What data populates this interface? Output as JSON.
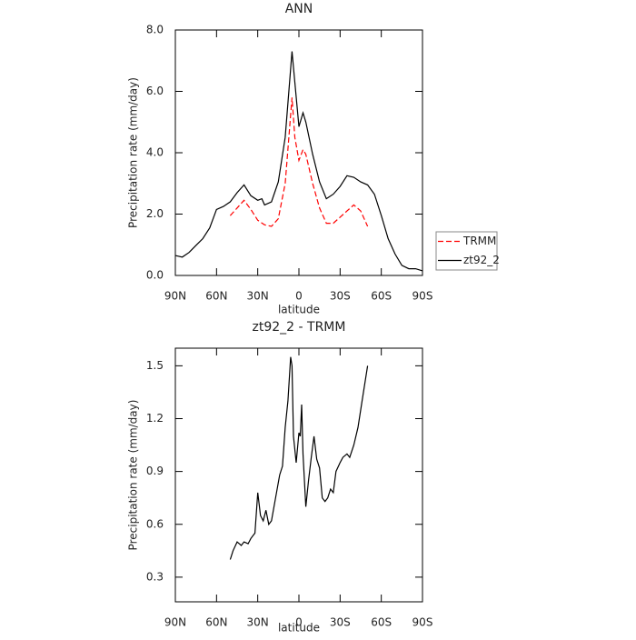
{
  "chart_data": [
    {
      "type": "line",
      "title": "ANN",
      "xlabel": "latitude",
      "ylabel": "Precipitation rate (mm/day)",
      "xlim": [
        90,
        -90
      ],
      "xticks": [
        {
          "value": 90,
          "label": "90N"
        },
        {
          "value": 60,
          "label": "60N"
        },
        {
          "value": 30,
          "label": "30N"
        },
        0,
        {
          "value": -30,
          "label": "30S"
        },
        {
          "value": -60,
          "label": "60S"
        },
        {
          "value": -90,
          "label": "90S"
        }
      ],
      "ylim": [
        0,
        8
      ],
      "yticks": [
        {
          "value": 0,
          "label": "0.0"
        },
        {
          "value": 2,
          "label": "2.0"
        },
        {
          "value": 4,
          "label": "4.0"
        },
        {
          "value": 6,
          "label": "6.0"
        },
        {
          "value": 8,
          "label": "8.0"
        }
      ],
      "legend": "right",
      "series": [
        {
          "name": "TRMM",
          "color": "#ff0000",
          "dash": true,
          "x": [
            50,
            45,
            40,
            35,
            30,
            25,
            20,
            15,
            10,
            5,
            3,
            0,
            -3,
            -5,
            -10,
            -15,
            -20,
            -25,
            -30,
            -35,
            -40,
            -45,
            -50
          ],
          "values": [
            1.95,
            2.2,
            2.45,
            2.15,
            1.8,
            1.65,
            1.6,
            1.85,
            3.0,
            5.8,
            4.5,
            3.75,
            4.1,
            3.95,
            3.0,
            2.2,
            1.7,
            1.7,
            1.9,
            2.1,
            2.3,
            2.1,
            1.6
          ]
        },
        {
          "name": "zt92_2",
          "color": "#000000",
          "dash": false,
          "x": [
            90,
            85,
            80,
            75,
            70,
            65,
            60,
            55,
            50,
            45,
            40,
            35,
            30,
            27,
            25,
            20,
            15,
            10,
            5,
            3,
            0,
            -3,
            -5,
            -10,
            -15,
            -20,
            -25,
            -30,
            -35,
            -40,
            -45,
            -50,
            -55,
            -60,
            -65,
            -70,
            -75,
            -80,
            -85,
            -90
          ],
          "values": [
            0.65,
            0.6,
            0.75,
            0.98,
            1.2,
            1.55,
            2.15,
            2.25,
            2.4,
            2.7,
            2.95,
            2.6,
            2.45,
            2.5,
            2.3,
            2.4,
            3.05,
            4.5,
            7.3,
            6.3,
            4.85,
            5.3,
            5.0,
            3.95,
            3.05,
            2.5,
            2.65,
            2.9,
            3.25,
            3.2,
            3.05,
            2.95,
            2.65,
            1.95,
            1.2,
            0.7,
            0.33,
            0.22,
            0.22,
            0.15
          ]
        }
      ]
    },
    {
      "type": "line",
      "title": "zt92_2 - TRMM",
      "xlabel": "latitude",
      "ylabel": "Precipitation rate (mm/day)",
      "xlim": [
        90,
        -90
      ],
      "xticks": [
        {
          "value": 90,
          "label": "90N"
        },
        {
          "value": 60,
          "label": "60N"
        },
        {
          "value": 30,
          "label": "30N"
        },
        0,
        {
          "value": -30,
          "label": "30S"
        },
        {
          "value": -60,
          "label": "60S"
        },
        {
          "value": -90,
          "label": "90S"
        }
      ],
      "ylim": [
        0.16,
        1.6
      ],
      "yticks": [
        0.3,
        0.6,
        0.9,
        1.2,
        1.5
      ],
      "series": [
        {
          "color": "#000000",
          "dash": false,
          "x": [
            50,
            48,
            45,
            42,
            40,
            37,
            35,
            32,
            30,
            28,
            26,
            24,
            22,
            20,
            17,
            14,
            12,
            10,
            8,
            6,
            5,
            4,
            2,
            0,
            -1,
            -2,
            -3,
            -5,
            -7,
            -9,
            -11,
            -13,
            -15,
            -17,
            -19,
            -21,
            -23,
            -25,
            -27,
            -30,
            -32,
            -35,
            -37,
            -40,
            -43,
            -46,
            -50
          ],
          "values": [
            0.4,
            0.45,
            0.5,
            0.48,
            0.5,
            0.49,
            0.52,
            0.55,
            0.78,
            0.65,
            0.62,
            0.68,
            0.6,
            0.62,
            0.75,
            0.88,
            0.93,
            1.15,
            1.3,
            1.55,
            1.5,
            1.1,
            0.95,
            1.12,
            1.1,
            1.28,
            1.0,
            0.7,
            0.85,
            0.98,
            1.1,
            0.97,
            0.92,
            0.75,
            0.73,
            0.75,
            0.8,
            0.78,
            0.9,
            0.95,
            0.98,
            1.0,
            0.98,
            1.05,
            1.15,
            1.3,
            1.5
          ]
        }
      ]
    }
  ]
}
